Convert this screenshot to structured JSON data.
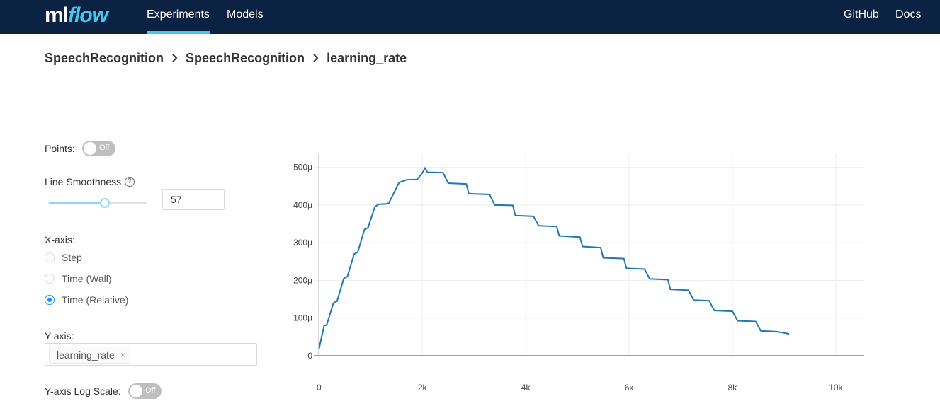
{
  "header": {
    "logo_ml": "ml",
    "logo_flow": "flow",
    "nav": [
      {
        "label": "Experiments",
        "active": true
      },
      {
        "label": "Models",
        "active": false
      }
    ],
    "right_links": [
      "GitHub",
      "Docs"
    ],
    "bg_color": "#0b2242",
    "accent_color": "#43c9ed"
  },
  "breadcrumb": [
    "SpeechRecognition",
    "SpeechRecognition",
    "learning_rate"
  ],
  "controls": {
    "points_label": "Points:",
    "points_toggle": "Off",
    "smoothness_label": "Line Smoothness",
    "smoothness_value": "57",
    "smoothness_fraction": 0.57,
    "xaxis_label": "X-axis:",
    "xaxis_options": [
      {
        "label": "Step",
        "checked": false
      },
      {
        "label": "Time (Wall)",
        "checked": false
      },
      {
        "label": "Time (Relative)",
        "checked": true
      }
    ],
    "yaxis_label": "Y-axis:",
    "yaxis_selected": "learning_rate",
    "log_scale_label": "Y-axis Log Scale:",
    "log_scale_toggle": "Off"
  },
  "chart_data": {
    "type": "line",
    "x_ticks": [
      "0",
      "2k",
      "4k",
      "6k",
      "8k",
      "10k"
    ],
    "y_ticks": [
      "0",
      "100μ",
      "200μ",
      "300μ",
      "400μ",
      "500μ"
    ],
    "xlim": [
      -100,
      10550
    ],
    "ylim": [
      0,
      535
    ],
    "line_color": "#1f77b4",
    "grid": true,
    "series": [
      {
        "x": [
          0,
          100,
          150,
          280,
          350,
          480,
          550,
          680,
          750,
          880,
          950,
          1080,
          1150,
          1300,
          1350,
          1550,
          1700,
          1900,
          2000,
          2050,
          2100,
          2400,
          2500,
          2850,
          2900,
          3300,
          3400,
          3750,
          3800,
          4150,
          4250,
          4600,
          4650,
          5050,
          5100,
          5450,
          5500,
          5900,
          5950,
          6300,
          6400,
          6750,
          6800,
          7150,
          7250,
          7550,
          7650,
          8000,
          8100,
          8450,
          8550,
          8850,
          8950,
          9100
        ],
        "y": [
          18,
          80,
          82,
          140,
          145,
          205,
          210,
          270,
          275,
          335,
          340,
          395,
          402,
          403,
          405,
          460,
          467,
          468,
          485,
          498,
          487,
          486,
          458,
          456,
          430,
          428,
          400,
          399,
          372,
          370,
          345,
          343,
          318,
          315,
          290,
          287,
          260,
          258,
          232,
          230,
          204,
          202,
          176,
          174,
          148,
          146,
          120,
          118,
          93,
          91,
          66,
          64,
          62,
          58
        ]
      }
    ]
  }
}
